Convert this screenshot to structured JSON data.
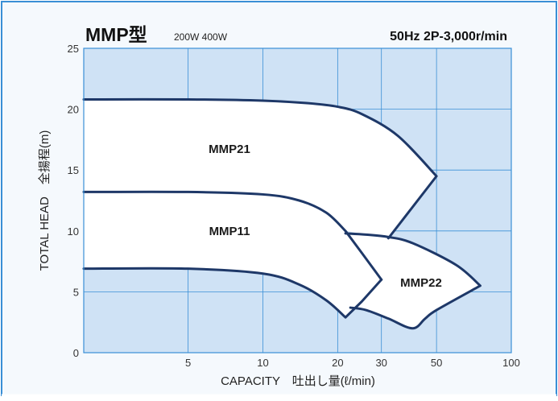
{
  "chart_data": {
    "type": "line",
    "title": "MMP型",
    "subtitle": "200W 400W",
    "condition": "50Hz 2P-3,000r/min",
    "xlabel": "CAPACITY　吐出し量(ℓ/min)",
    "ylabel": "TOTAL HEAD　全揚程(m)",
    "x_scale": "log",
    "xlim": [
      1.9,
      100
    ],
    "ylim": [
      0,
      25
    ],
    "x_ticks": [
      "5",
      "10",
      "20",
      "30",
      "50",
      "100"
    ],
    "y_ticks": [
      "0",
      "5",
      "10",
      "15",
      "20",
      "25"
    ],
    "grid": true,
    "colors": {
      "frame": "#3a8fd6",
      "plot_bg": "#cfe2f5",
      "region_fill": "#ffffff",
      "curve": "#1e3868",
      "outer": "#f5f9fd"
    },
    "series": [
      {
        "name": "MMP21",
        "x": [
          1.9,
          5,
          10,
          15,
          20,
          25,
          35,
          50,
          32
        ],
        "y": [
          20.8,
          20.8,
          20.7,
          20.5,
          20.2,
          19.6,
          17.8,
          14.5,
          9.4
        ]
      },
      {
        "name": "MMP11",
        "x": [
          1.9,
          5,
          10,
          14,
          18,
          21.5,
          25,
          30
        ],
        "y": [
          13.2,
          13.2,
          13.0,
          12.5,
          11.5,
          10.0,
          8.2,
          6.0
        ]
      },
      {
        "name": "MMP22",
        "x": [
          21.5,
          26,
          32,
          40,
          60,
          75,
          50,
          45,
          40,
          32,
          26,
          22.5
        ],
        "y": [
          9.8,
          9.7,
          9.5,
          9.0,
          7.2,
          5.5,
          3.5,
          2.8,
          2.0,
          2.8,
          3.5,
          3.7
        ]
      },
      {
        "name": "",
        "x": [
          1.9,
          5,
          10,
          14,
          18,
          21.5,
          25,
          30
        ],
        "y": [
          6.9,
          6.9,
          6.5,
          5.6,
          4.3,
          2.9,
          4.2,
          6.0
        ]
      }
    ]
  }
}
